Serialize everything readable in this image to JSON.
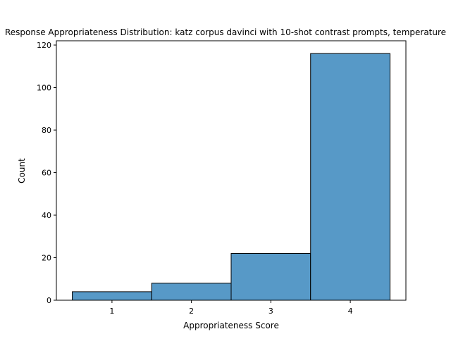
{
  "chart_data": {
    "type": "bar",
    "title": "Response Appropriateness Distribution: katz corpus davinci with 10-shot contrast prompts, temperature",
    "xlabel": "Appropriateness Score",
    "ylabel": "Count",
    "categories": [
      "1",
      "2",
      "3",
      "4"
    ],
    "values": [
      4,
      8,
      22,
      116
    ],
    "xlim": [
      0.3,
      4.7
    ],
    "ylim": [
      0,
      122
    ],
    "y_ticks": [
      0,
      20,
      40,
      60,
      80,
      100,
      120
    ],
    "x_ticks": [
      1,
      2,
      3,
      4
    ],
    "bar_color": "#5799c7",
    "edge_color": "#000000",
    "grid": false,
    "legend": "none"
  }
}
